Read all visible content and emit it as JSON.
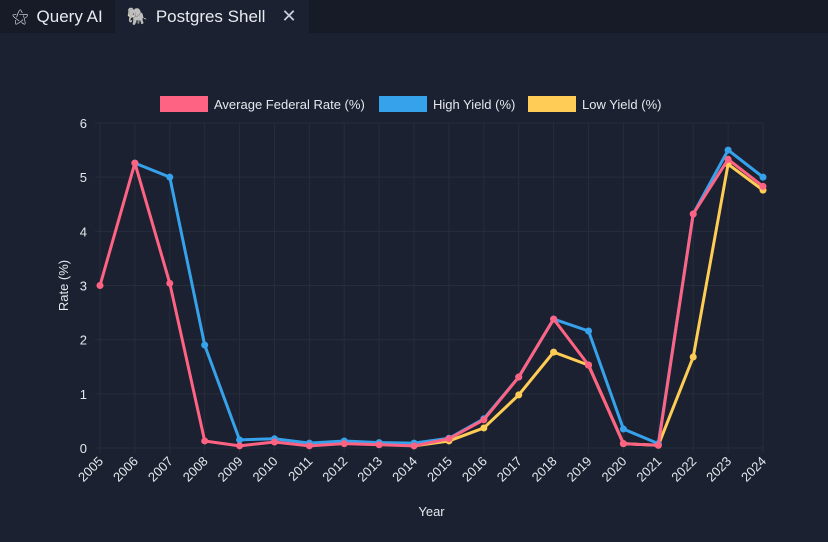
{
  "tabs": [
    {
      "label": "Query AI",
      "icon": "magic-wand-icon"
    },
    {
      "label": "Postgres Shell",
      "icon": "postgres-elephant-icon",
      "close": "✕"
    }
  ],
  "chart_data": {
    "type": "line",
    "xlabel": "Year",
    "ylabel": "Rate (%)",
    "ylim": [
      0,
      6
    ],
    "yticks": [
      0,
      1,
      2,
      3,
      4,
      5,
      6
    ],
    "legend_position": "top",
    "categories": [
      "2005",
      "2006",
      "2007",
      "2008",
      "2009",
      "2010",
      "2011",
      "2012",
      "2013",
      "2014",
      "2015",
      "2016",
      "2017",
      "2018",
      "2019",
      "2020",
      "2021",
      "2022",
      "2023",
      "2024"
    ],
    "series": [
      {
        "name": "Average Federal Rate (%)",
        "color": "#ff6384",
        "values": [
          3.0,
          5.26,
          3.04,
          0.13,
          0.04,
          0.11,
          0.04,
          0.08,
          0.06,
          0.04,
          0.17,
          0.52,
          1.31,
          2.38,
          1.53,
          0.08,
          0.05,
          4.32,
          5.33,
          4.83
        ]
      },
      {
        "name": "High Yield (%)",
        "color": "#36a2eb",
        "values": [
          null,
          5.26,
          5.0,
          1.9,
          0.15,
          0.17,
          0.09,
          0.13,
          0.1,
          0.09,
          0.18,
          0.54,
          1.31,
          2.38,
          2.16,
          0.35,
          0.08,
          4.32,
          5.5,
          5.0
        ]
      },
      {
        "name": "Low Yield (%)",
        "color": "#ffcd56",
        "values": [
          null,
          null,
          null,
          null,
          null,
          null,
          null,
          null,
          null,
          0.04,
          0.13,
          0.37,
          0.98,
          1.77,
          1.53,
          0.08,
          0.05,
          1.68,
          5.24,
          4.76
        ]
      }
    ]
  }
}
